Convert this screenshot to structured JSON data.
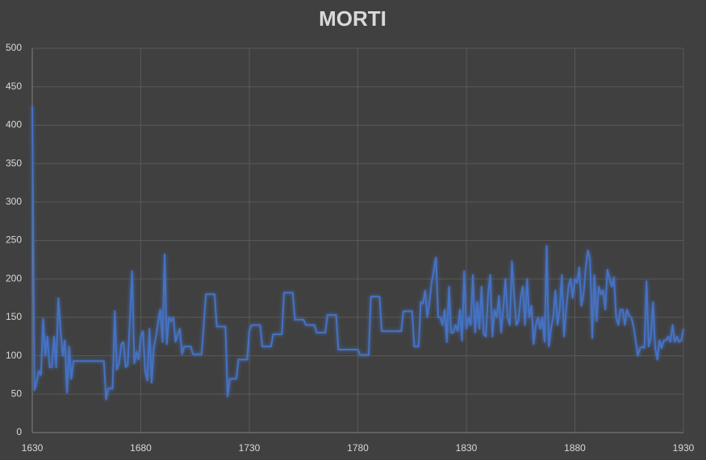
{
  "chart_data": {
    "type": "line",
    "title": "MORTI",
    "color": "#4472c4",
    "grid": true,
    "xlim": [
      1630,
      1930
    ],
    "xticks": [
      1630,
      1680,
      1730,
      1780,
      1830,
      1880,
      1930
    ],
    "ylim": [
      0,
      500
    ],
    "yticks": [
      0,
      50,
      100,
      150,
      200,
      250,
      300,
      350,
      400,
      450,
      500
    ],
    "x": [
      1630,
      1631,
      1632,
      1633,
      1634,
      1635,
      1636,
      1637,
      1638,
      1639,
      1640,
      1641,
      1642,
      1643,
      1644,
      1645,
      1646,
      1647,
      1648,
      1649,
      1663,
      1664,
      1665,
      1666,
      1667,
      1668,
      1669,
      1670,
      1671,
      1672,
      1673,
      1674,
      1676,
      1677,
      1678,
      1679,
      1680,
      1681,
      1682,
      1683,
      1684,
      1685,
      1686,
      1687,
      1688,
      1689,
      1690,
      1691,
      1692,
      1693,
      1694,
      1695,
      1696,
      1697,
      1698,
      1699,
      1700,
      1703,
      1704,
      1708,
      1709,
      1710,
      1714,
      1715,
      1719,
      1720,
      1721,
      1724,
      1725,
      1729,
      1730,
      1731,
      1735,
      1736,
      1740,
      1741,
      1745,
      1746,
      1750,
      1751,
      1755,
      1756,
      1760,
      1761,
      1765,
      1766,
      1770,
      1771,
      1780,
      1781,
      1785,
      1786,
      1790,
      1791,
      1800,
      1801,
      1805,
      1806,
      1808,
      1809,
      1810,
      1811,
      1812,
      1813,
      1814,
      1816,
      1817,
      1818,
      1819,
      1820,
      1821,
      1822,
      1823,
      1824,
      1825,
      1826,
      1827,
      1828,
      1829,
      1830,
      1831,
      1832,
      1833,
      1834,
      1835,
      1836,
      1837,
      1838,
      1839,
      1840,
      1841,
      1842,
      1843,
      1844,
      1845,
      1846,
      1847,
      1848,
      1849,
      1850,
      1851,
      1852,
      1853,
      1854,
      1855,
      1856,
      1857,
      1858,
      1859,
      1860,
      1861,
      1862,
      1863,
      1864,
      1865,
      1866,
      1867,
      1868,
      1869,
      1870,
      1871,
      1872,
      1873,
      1874,
      1875,
      1876,
      1877,
      1878,
      1879,
      1880,
      1881,
      1882,
      1883,
      1884,
      1885,
      1886,
      1887,
      1888,
      1889,
      1890,
      1891,
      1892,
      1893,
      1894,
      1895,
      1896,
      1897,
      1898,
      1899,
      1900,
      1901,
      1902,
      1903,
      1904,
      1905,
      1906,
      1907,
      1908,
      1909,
      1910,
      1911,
      1912,
      1913,
      1914,
      1915,
      1916,
      1917,
      1918,
      1919,
      1920,
      1921,
      1922,
      1923,
      1924,
      1925,
      1926,
      1927,
      1928,
      1929,
      1930
    ],
    "values": [
      425,
      55,
      65,
      80,
      75,
      148,
      100,
      125,
      85,
      85,
      125,
      85,
      175,
      135,
      100,
      120,
      52,
      112,
      70,
      93,
      93,
      43,
      57,
      58,
      57,
      158,
      82,
      90,
      115,
      118,
      85,
      88,
      210,
      90,
      105,
      95,
      125,
      132,
      80,
      68,
      135,
      65,
      110,
      125,
      145,
      160,
      118,
      232,
      115,
      150,
      145,
      150,
      118,
      128,
      135,
      102,
      112,
      112,
      102,
      102,
      140,
      180,
      180,
      138,
      138,
      47,
      70,
      70,
      95,
      95,
      132,
      140,
      140,
      112,
      112,
      128,
      128,
      182,
      182,
      147,
      147,
      140,
      140,
      130,
      130,
      153,
      153,
      108,
      108,
      101,
      101,
      177,
      177,
      132,
      132,
      158,
      158,
      112,
      112,
      170,
      168,
      185,
      150,
      170,
      195,
      228,
      150,
      150,
      140,
      160,
      118,
      190,
      130,
      130,
      140,
      132,
      160,
      120,
      210,
      135,
      150,
      140,
      205,
      130,
      170,
      135,
      190,
      128,
      125,
      180,
      205,
      125,
      160,
      150,
      178,
      130,
      160,
      200,
      150,
      140,
      223,
      180,
      140,
      145,
      175,
      190,
      140,
      200,
      150,
      165,
      115,
      140,
      150,
      135,
      150,
      118,
      243,
      112,
      135,
      150,
      185,
      140,
      160,
      205,
      125,
      160,
      190,
      200,
      175,
      200,
      195,
      215,
      165,
      180,
      215,
      237,
      225,
      123,
      205,
      145,
      190,
      180,
      185,
      160,
      212,
      200,
      190,
      202,
      150,
      140,
      160,
      160,
      140,
      160,
      152,
      150,
      138,
      120,
      100,
      110,
      112,
      110,
      197,
      112,
      125,
      170,
      110,
      95,
      120,
      110,
      120,
      120,
      125,
      118,
      140,
      118,
      125,
      118,
      120,
      135
    ]
  }
}
